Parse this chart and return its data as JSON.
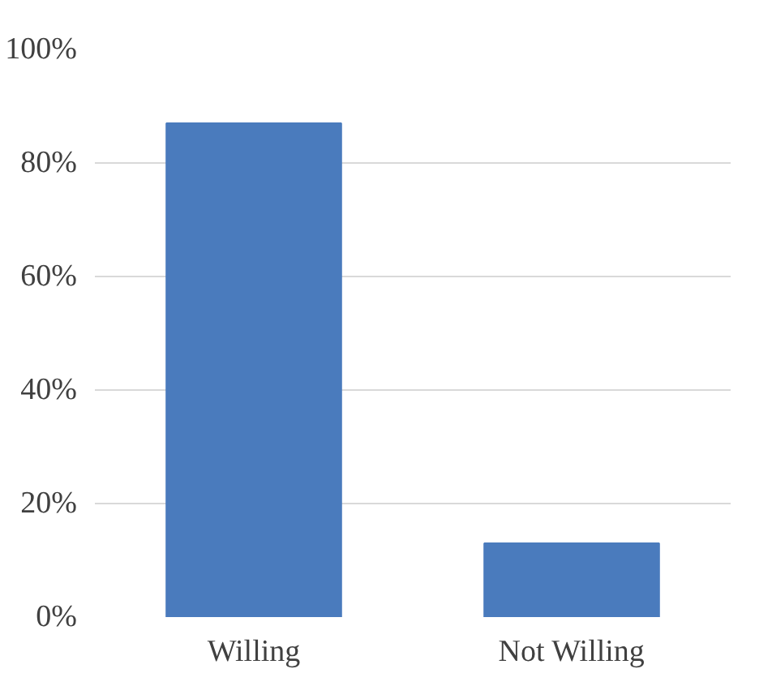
{
  "chart_data": {
    "type": "bar",
    "categories": [
      "Willing",
      "Not Willing"
    ],
    "values": [
      87,
      13
    ],
    "color": "#4a7bbd",
    "ylim": [
      0,
      100
    ],
    "yticks": [
      {
        "value": 0,
        "label": "0%"
      },
      {
        "value": 20,
        "label": "20%"
      },
      {
        "value": 40,
        "label": "40%"
      },
      {
        "value": 60,
        "label": "60%"
      },
      {
        "value": 80,
        "label": "80%"
      },
      {
        "value": 100,
        "label": "100%"
      }
    ],
    "grid": "y"
  }
}
